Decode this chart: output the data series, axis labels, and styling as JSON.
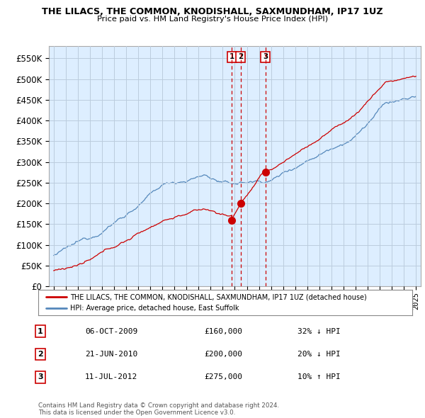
{
  "title": "THE LILACS, THE COMMON, KNODISHALL, SAXMUNDHAM, IP17 1UZ",
  "subtitle": "Price paid vs. HM Land Registry's House Price Index (HPI)",
  "legend_line1": "THE LILACS, THE COMMON, KNODISHALL, SAXMUNDHAM, IP17 1UZ (detached house)",
  "legend_line2": "HPI: Average price, detached house, East Suffolk",
  "footer1": "Contains HM Land Registry data © Crown copyright and database right 2024.",
  "footer2": "This data is licensed under the Open Government Licence v3.0.",
  "table": [
    {
      "num": "1",
      "date": "06-OCT-2009",
      "price": "£160,000",
      "change": "32% ↓ HPI"
    },
    {
      "num": "2",
      "date": "21-JUN-2010",
      "price": "£200,000",
      "change": "20% ↓ HPI"
    },
    {
      "num": "3",
      "date": "11-JUL-2012",
      "price": "£275,000",
      "change": "10% ↑ HPI"
    }
  ],
  "sale_dates": [
    2009.76,
    2010.47,
    2012.53
  ],
  "sale_prices": [
    160000,
    200000,
    275000
  ],
  "sale_color": "#cc0000",
  "hpi_color": "#5588bb",
  "ylim": [
    0,
    580000
  ],
  "yticks": [
    0,
    50000,
    100000,
    150000,
    200000,
    250000,
    300000,
    350000,
    400000,
    450000,
    500000,
    550000
  ],
  "plot_bg_color": "#ddeeff",
  "grid_color": "#bbccdd",
  "vline_color": "#cc0000"
}
